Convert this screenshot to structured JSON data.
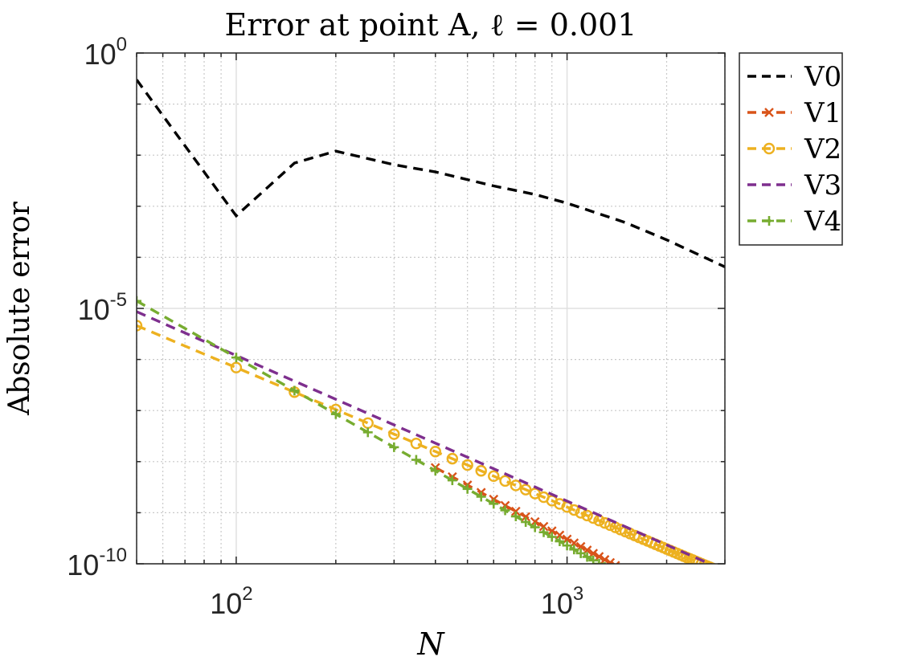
{
  "chart_data": {
    "type": "line",
    "title": "Error at point A, ℓ = 0.001",
    "xlabel": "N",
    "ylabel": "Absolute error",
    "xscale": "log",
    "yscale": "log",
    "xlim": [
      50,
      3000
    ],
    "ylim": [
      1e-10,
      1
    ],
    "grid": true,
    "legend_position": "outside-top-right",
    "x_ticks": [
      {
        "value": 100,
        "base": "10",
        "exp": "2"
      },
      {
        "value": 1000,
        "base": "10",
        "exp": "3"
      }
    ],
    "y_ticks": [
      {
        "value": 1,
        "base": "10",
        "exp": "0"
      },
      {
        "value": 1e-05,
        "base": "10",
        "exp": "-5"
      },
      {
        "value": 1e-10,
        "base": "10",
        "exp": "-10"
      }
    ],
    "series": [
      {
        "name": "V0",
        "color": "#000000",
        "dash": "dashed",
        "marker": "none",
        "x": [
          50,
          100,
          150,
          200,
          300,
          400,
          600,
          800,
          1000,
          1500,
          2000,
          3000
        ],
        "y": [
          0.3,
          0.00065,
          0.007,
          0.012,
          0.0065,
          0.0047,
          0.0025,
          0.0017,
          0.00115,
          0.00048,
          0.00022,
          6.5e-05
        ]
      },
      {
        "name": "V1",
        "color": "#D95319",
        "dash": "dashed",
        "marker": "x",
        "x_start": 50,
        "x_step": 50,
        "x_end": 3000,
        "power_law": {
          "c": 11,
          "k": 3.52,
          "x_min_drawn": 400
        }
      },
      {
        "name": "V2",
        "color": "#EDB120",
        "dash": "dashed",
        "marker": "o",
        "x_start": 50,
        "x_step": 50,
        "x_end": 3000,
        "power_law": {
          "c": 0.2,
          "k": 2.73,
          "x_min_drawn": 50
        }
      },
      {
        "name": "V3",
        "color": "#7E2F8E",
        "dash": "dashed",
        "marker": "none",
        "x_start": 50,
        "x_step": 50,
        "x_end": 3000,
        "power_law": {
          "c": 0.6,
          "k": 2.85,
          "x_min_drawn": 50
        }
      },
      {
        "name": "V4",
        "color": "#77AC30",
        "dash": "dashed",
        "marker": "+",
        "x_start": 50,
        "x_step": 50,
        "x_end": 3000,
        "power_law": {
          "c": 25,
          "k": 3.68,
          "x_min_drawn": 50
        }
      }
    ]
  }
}
